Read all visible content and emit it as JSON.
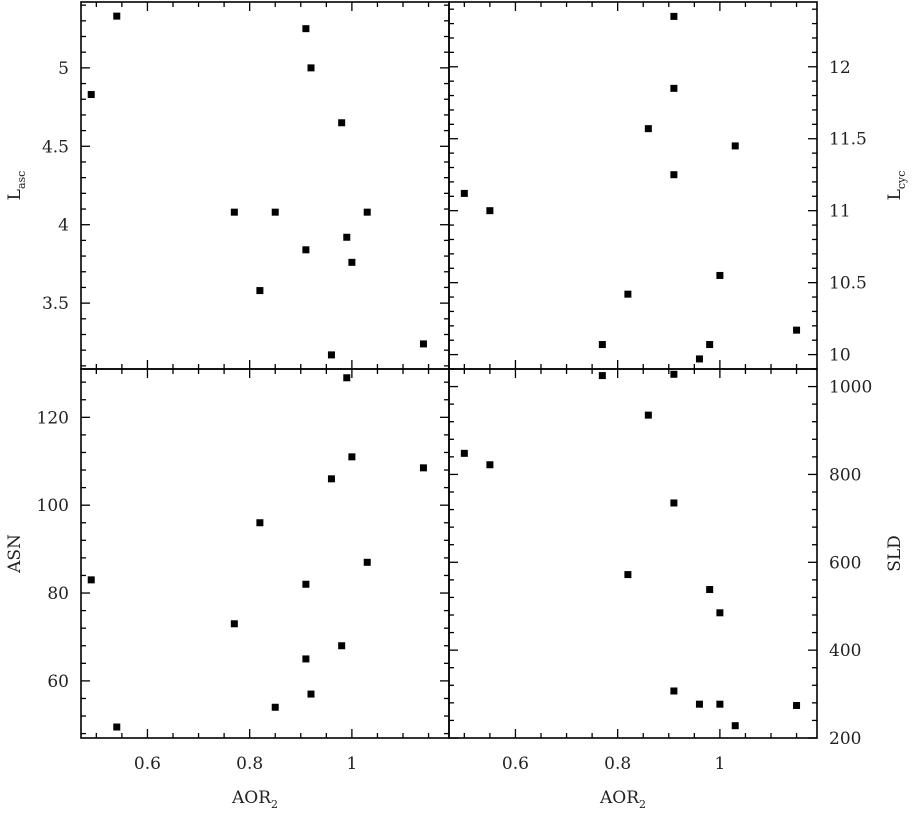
{
  "chart_data": [
    {
      "type": "scatter",
      "panel": "top-left",
      "xlabel": "",
      "ylabel_main": "L",
      "ylabel_sub": "asc",
      "ylabel_side": "left",
      "xlim": [
        0.47,
        1.19
      ],
      "ylim": [
        3.08,
        5.42
      ],
      "xticks": [
        0.6,
        0.8,
        1.0
      ],
      "xtick_labels": [
        "",
        "",
        ""
      ],
      "yticks": [
        3.5,
        4.0,
        4.5,
        5.0
      ],
      "ytick_labels": [
        "3.5",
        "4",
        "4.5",
        "5"
      ],
      "points": [
        {
          "x": 0.54,
          "y": 5.33
        },
        {
          "x": 0.49,
          "y": 4.83
        },
        {
          "x": 0.91,
          "y": 5.25
        },
        {
          "x": 0.92,
          "y": 5.0
        },
        {
          "x": 0.98,
          "y": 4.65
        },
        {
          "x": 0.77,
          "y": 4.08
        },
        {
          "x": 0.85,
          "y": 4.08
        },
        {
          "x": 1.03,
          "y": 4.08
        },
        {
          "x": 0.91,
          "y": 3.84
        },
        {
          "x": 0.99,
          "y": 3.92
        },
        {
          "x": 1.0,
          "y": 3.76
        },
        {
          "x": 0.82,
          "y": 3.58
        },
        {
          "x": 1.14,
          "y": 3.24
        },
        {
          "x": 0.96,
          "y": 3.17
        }
      ]
    },
    {
      "type": "scatter",
      "panel": "top-right",
      "xlabel": "",
      "ylabel_main": "L",
      "ylabel_sub": "cyc",
      "ylabel_side": "right",
      "xlim": [
        0.47,
        1.19
      ],
      "ylim": [
        9.9,
        12.45
      ],
      "xticks": [
        0.6,
        0.8,
        1.0
      ],
      "xtick_labels": [
        "",
        "",
        ""
      ],
      "yticks": [
        10,
        10.5,
        11,
        11.5,
        12
      ],
      "ytick_labels": [
        "10",
        "10.5",
        "11",
        "11.5",
        "12"
      ],
      "points": [
        {
          "x": 0.91,
          "y": 12.35
        },
        {
          "x": 0.91,
          "y": 11.85
        },
        {
          "x": 0.86,
          "y": 11.57
        },
        {
          "x": 1.03,
          "y": 11.45
        },
        {
          "x": 0.91,
          "y": 11.25
        },
        {
          "x": 0.5,
          "y": 11.12
        },
        {
          "x": 0.55,
          "y": 11.0
        },
        {
          "x": 1.0,
          "y": 10.55
        },
        {
          "x": 0.82,
          "y": 10.42
        },
        {
          "x": 1.15,
          "y": 10.17
        },
        {
          "x": 0.77,
          "y": 10.07
        },
        {
          "x": 0.98,
          "y": 10.07
        },
        {
          "x": 0.96,
          "y": 9.97
        }
      ]
    },
    {
      "type": "scatter",
      "panel": "bottom-left",
      "xlabel_main": "AOR",
      "xlabel_sub": "2",
      "ylabel_main": "ASN",
      "ylabel_sub": "",
      "ylabel_side": "left",
      "xlim": [
        0.47,
        1.19
      ],
      "ylim": [
        47,
        131
      ],
      "xticks": [
        0.6,
        0.8,
        1.0
      ],
      "xtick_labels": [
        "0.6",
        "0.8",
        "1"
      ],
      "yticks": [
        60,
        80,
        100,
        120
      ],
      "ytick_labels": [
        "60",
        "80",
        "100",
        "120"
      ],
      "points": [
        {
          "x": 0.99,
          "y": 129
        },
        {
          "x": 1.0,
          "y": 111
        },
        {
          "x": 1.14,
          "y": 108.5
        },
        {
          "x": 0.96,
          "y": 106
        },
        {
          "x": 0.82,
          "y": 96
        },
        {
          "x": 1.03,
          "y": 87
        },
        {
          "x": 0.49,
          "y": 83
        },
        {
          "x": 0.91,
          "y": 82
        },
        {
          "x": 0.77,
          "y": 73
        },
        {
          "x": 0.98,
          "y": 68
        },
        {
          "x": 0.91,
          "y": 65
        },
        {
          "x": 0.92,
          "y": 57
        },
        {
          "x": 0.85,
          "y": 54
        },
        {
          "x": 0.54,
          "y": 49.5
        }
      ]
    },
    {
      "type": "scatter",
      "panel": "bottom-right",
      "xlabel_main": "AOR",
      "xlabel_sub": "2",
      "ylabel_main": "SLD",
      "ylabel_sub": "",
      "ylabel_side": "right",
      "xlim": [
        0.47,
        1.19
      ],
      "ylim": [
        200,
        1040
      ],
      "xticks": [
        0.6,
        0.8,
        1.0
      ],
      "xtick_labels": [
        "0.6",
        "0.8",
        "1"
      ],
      "yticks": [
        200,
        400,
        600,
        800,
        1000
      ],
      "ytick_labels": [
        "200",
        "400",
        "600",
        "800",
        "1000"
      ],
      "points": [
        {
          "x": 0.77,
          "y": 1025
        },
        {
          "x": 0.91,
          "y": 1028
        },
        {
          "x": 0.86,
          "y": 935
        },
        {
          "x": 0.5,
          "y": 848
        },
        {
          "x": 0.55,
          "y": 822
        },
        {
          "x": 0.91,
          "y": 735
        },
        {
          "x": 0.82,
          "y": 572
        },
        {
          "x": 0.98,
          "y": 538
        },
        {
          "x": 1.0,
          "y": 485
        },
        {
          "x": 0.91,
          "y": 307
        },
        {
          "x": 0.96,
          "y": 277
        },
        {
          "x": 1.0,
          "y": 277
        },
        {
          "x": 1.15,
          "y": 274
        },
        {
          "x": 1.03,
          "y": 228
        }
      ]
    }
  ]
}
